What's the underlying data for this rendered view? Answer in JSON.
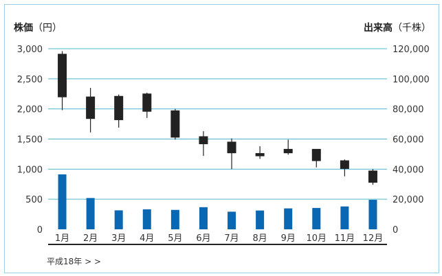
{
  "chart_data": {
    "type": "candlestick+bar",
    "left_axis": {
      "label_bold": "株価",
      "label_unit": "（円）",
      "ticks": [
        0,
        500,
        1000,
        1500,
        2000,
        2500,
        3000
      ],
      "tick_labels": [
        "0",
        "500",
        "1,000",
        "1,500",
        "2,000",
        "2,500",
        "3,000"
      ],
      "ylim": [
        0,
        3000
      ]
    },
    "right_axis": {
      "label_bold": "出来高",
      "label_unit": "（千株）",
      "ticks": [
        0,
        20000,
        40000,
        60000,
        80000,
        100000,
        120000
      ],
      "tick_labels": [
        "0",
        "20,000",
        "40,000",
        "60,000",
        "80,000",
        "100,000",
        "120,000"
      ],
      "ylim": [
        0,
        120000
      ]
    },
    "categories": [
      "1月",
      "2月",
      "3月",
      "4月",
      "5月",
      "6月",
      "7月",
      "8月",
      "9月",
      "10月",
      "11月",
      "12月"
    ],
    "price": [
      {
        "open": 2200,
        "high": 2960,
        "low": 1980,
        "close": 2910
      },
      {
        "open": 1840,
        "high": 2350,
        "low": 1610,
        "close": 2200
      },
      {
        "open": 1820,
        "high": 2240,
        "low": 1690,
        "close": 2210
      },
      {
        "open": 1960,
        "high": 2270,
        "low": 1850,
        "close": 2250
      },
      {
        "open": 1530,
        "high": 2000,
        "low": 1490,
        "close": 1970
      },
      {
        "open": 1420,
        "high": 1630,
        "low": 1220,
        "close": 1540
      },
      {
        "open": 1270,
        "high": 1510,
        "low": 1000,
        "close": 1450
      },
      {
        "open": 1220,
        "high": 1380,
        "low": 1170,
        "close": 1260
      },
      {
        "open": 1270,
        "high": 1490,
        "low": 1240,
        "close": 1330
      },
      {
        "open": 1140,
        "high": 1330,
        "low": 1030,
        "close": 1330
      },
      {
        "open": 1010,
        "high": 1160,
        "low": 880,
        "close": 1140
      },
      {
        "open": 780,
        "high": 1000,
        "low": 740,
        "close": 970
      }
    ],
    "volume": [
      36500,
      20800,
      12600,
      13300,
      12900,
      14700,
      11700,
      12500,
      13900,
      14200,
      15200,
      19600
    ],
    "colors": {
      "grid": "#4fb8cf",
      "bar": "#0a67b2",
      "candle": "#222222",
      "axis": "#222222"
    }
  },
  "footnote": "平成18年 > >"
}
